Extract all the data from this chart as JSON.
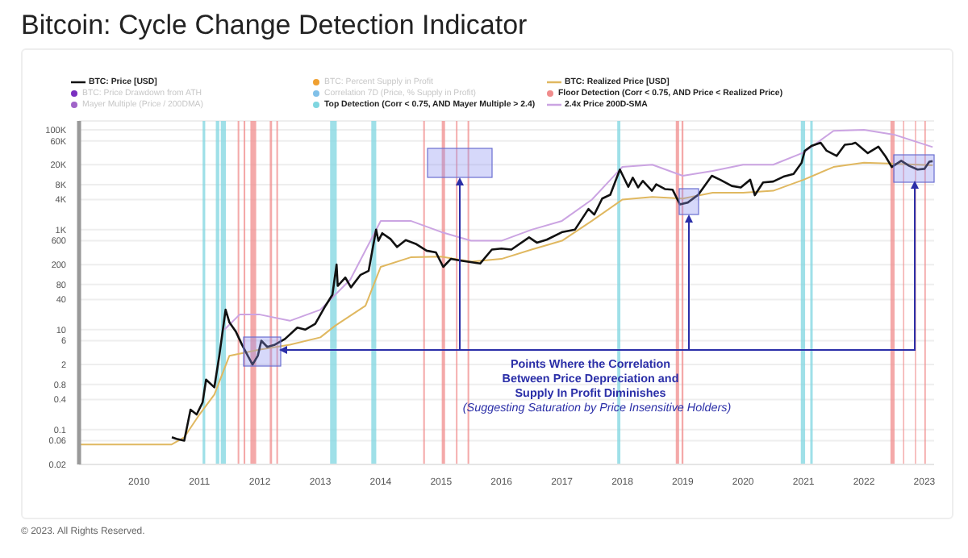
{
  "chart_data": {
    "type": "line",
    "title": "Bitcoin: Cycle Change Detection Indicator",
    "series": [
      {
        "name": "BTC: Price [USD]",
        "color": "#111111",
        "x": [
          "2010-07-18",
          "2010-08-15",
          "2010-10-01",
          "2010-11-08",
          "2010-12-15",
          "2011-01-20",
          "2011-02-10",
          "2011-04-01",
          "2011-05-01",
          "2011-06-08",
          "2011-07-01",
          "2011-08-10",
          "2011-09-15",
          "2011-10-20",
          "2011-11-18",
          "2011-12-20",
          "2012-01-10",
          "2012-02-15",
          "2012-04-01",
          "2012-06-01",
          "2012-08-15",
          "2012-10-01",
          "2012-12-01",
          "2013-02-01",
          "2013-03-15",
          "2013-04-09",
          "2013-04-16",
          "2013-06-01",
          "2013-07-05",
          "2013-09-01",
          "2013-10-20",
          "2013-12-04",
          "2013-12-18",
          "2014-01-10",
          "2014-03-01",
          "2014-04-10",
          "2014-06-01",
          "2014-08-01",
          "2014-10-05",
          "2014-12-01",
          "2015-01-14",
          "2015-03-01",
          "2015-05-01",
          "2015-08-25",
          "2015-11-04",
          "2016-01-01",
          "2016-03-01",
          "2016-06-16",
          "2016-08-02",
          "2016-10-01",
          "2017-01-04",
          "2017-03-20",
          "2017-06-10",
          "2017-07-15",
          "2017-09-01",
          "2017-10-20",
          "2017-12-17",
          "2018-02-06",
          "2018-03-05",
          "2018-04-06",
          "2018-05-05",
          "2018-06-29",
          "2018-07-25",
          "2018-09-15",
          "2018-11-01",
          "2018-12-15",
          "2019-02-01",
          "2019-04-05",
          "2019-06-26",
          "2019-08-15",
          "2019-10-25",
          "2019-12-18",
          "2020-02-13",
          "2020-03-12",
          "2020-05-01",
          "2020-07-01",
          "2020-09-01",
          "2020-11-01",
          "2020-12-20",
          "2021-01-08",
          "2021-02-20",
          "2021-04-14",
          "2021-05-20",
          "2021-07-20",
          "2021-09-07",
          "2021-10-20",
          "2021-11-10",
          "2022-01-24",
          "2022-03-29",
          "2022-05-12",
          "2022-06-18",
          "2022-08-14",
          "2022-10-01",
          "2022-11-21",
          "2023-01-01",
          "2023-01-31",
          "2023-02-20"
        ],
        "values": [
          0.07,
          0.065,
          0.06,
          0.25,
          0.2,
          0.35,
          1,
          0.7,
          3,
          25,
          14,
          9,
          5,
          3,
          2,
          3,
          6,
          4.5,
          5,
          6.5,
          11,
          10,
          13,
          30,
          50,
          200,
          75,
          110,
          70,
          125,
          150,
          1000,
          600,
          850,
          650,
          450,
          620,
          520,
          380,
          350,
          180,
          260,
          240,
          210,
          400,
          420,
          400,
          700,
          550,
          630,
          900,
          1000,
          2600,
          2000,
          4200,
          5000,
          16000,
          7200,
          11000,
          7000,
          9500,
          6000,
          8100,
          6500,
          6300,
          3200,
          3500,
          5000,
          12000,
          10000,
          7500,
          7000,
          10000,
          4900,
          8800,
          9200,
          11500,
          13000,
          22000,
          38000,
          48000,
          55000,
          38000,
          30000,
          50000,
          52000,
          55000,
          34000,
          46000,
          29000,
          18000,
          24000,
          19000,
          16000,
          16500,
          23000,
          23500
        ]
      },
      {
        "name": "BTC: Price Drawdown from ATH",
        "color": "#7a2fc0"
      },
      {
        "name": "Mayer Multiple (Price / 200DMA)",
        "color": "#a064c8"
      },
      {
        "name": "BTC: Percent Supply in Profit",
        "color": "#f0a030"
      },
      {
        "name": "Correlation 7D (Price, % Supply in Profit)",
        "color": "#80c0e8"
      },
      {
        "name": "BTC: Realized Price [USD]",
        "color": "#e0b860",
        "x": [
          "2009-01-03",
          "2010-07-15",
          "2010-10-01",
          "2011-01-01",
          "2011-04-01",
          "2011-07-01",
          "2012-01-01",
          "2012-07-01",
          "2013-01-01",
          "2013-04-01",
          "2013-10-01",
          "2014-01-01",
          "2014-07-01",
          "2015-01-01",
          "2015-07-01",
          "2016-01-01",
          "2016-07-01",
          "2017-01-01",
          "2017-07-01",
          "2018-01-01",
          "2018-07-01",
          "2019-01-01",
          "2019-07-01",
          "2020-01-01",
          "2020-07-01",
          "2021-01-01",
          "2021-07-01",
          "2022-01-01",
          "2022-07-01",
          "2023-02-20"
        ],
        "values": [
          0.05,
          0.05,
          0.07,
          0.2,
          0.5,
          3,
          4,
          5,
          7,
          12,
          30,
          180,
          280,
          290,
          230,
          260,
          400,
          600,
          1500,
          4000,
          4500,
          4200,
          5500,
          5500,
          6000,
          10000,
          18000,
          22000,
          21000,
          19500
        ]
      },
      {
        "name": "2.4x Price 200D-SMA",
        "color": "#cba4e2",
        "x": [
          "2011-06-01",
          "2011-09-01",
          "2012-01-01",
          "2012-07-01",
          "2013-01-01",
          "2013-07-01",
          "2014-01-01",
          "2014-07-01",
          "2015-01-01",
          "2015-07-01",
          "2016-01-01",
          "2016-07-01",
          "2017-01-01",
          "2017-07-01",
          "2018-01-01",
          "2018-07-01",
          "2019-01-01",
          "2019-07-01",
          "2020-01-01",
          "2020-07-01",
          "2021-01-01",
          "2021-07-01",
          "2022-01-01",
          "2022-07-01",
          "2023-02-20"
        ],
        "values": [
          10,
          20,
          20,
          15,
          25,
          100,
          1500,
          1500,
          900,
          600,
          600,
          1000,
          1500,
          4000,
          18000,
          20000,
          12000,
          15000,
          20000,
          20000,
          35000,
          95000,
          100000,
          80000,
          45000
        ]
      }
    ],
    "bands": [
      {
        "axis": "x",
        "from": "2011-04-10",
        "to": "2011-05-01",
        "color": "#7fd6e0",
        "label": "Top Detection (Corr < 0.75, AND Mayer Multiple > 2.4)"
      },
      {
        "axis": "x",
        "from": "2011-01-20",
        "to": "2011-02-05",
        "color": "#7fd6e0"
      },
      {
        "axis": "x",
        "from": "2011-05-10",
        "to": "2011-06-10",
        "color": "#7fd6e0"
      },
      {
        "axis": "x",
        "from": "2013-03-01",
        "to": "2013-04-10",
        "color": "#7fd6e0"
      },
      {
        "axis": "x",
        "from": "2013-11-05",
        "to": "2013-12-05",
        "color": "#7fd6e0"
      },
      {
        "axis": "x",
        "from": "2017-12-01",
        "to": "2017-12-20",
        "color": "#7fd6e0"
      },
      {
        "axis": "x",
        "from": "2020-12-15",
        "to": "2021-01-10",
        "color": "#7fd6e0"
      },
      {
        "axis": "x",
        "from": "2021-02-10",
        "to": "2021-02-25",
        "color": "#7fd6e0"
      },
      {
        "axis": "x",
        "from": "2011-11-05",
        "to": "2011-12-10",
        "color": "#f08c8c",
        "label": "Floor Detection (Corr < 0.75, AND Price < Realized Price)"
      },
      {
        "axis": "x",
        "from": "2011-08-20",
        "to": "2011-08-30",
        "color": "#f08c8c"
      },
      {
        "axis": "x",
        "from": "2011-09-25",
        "to": "2011-10-05",
        "color": "#f08c8c"
      },
      {
        "axis": "x",
        "from": "2012-03-01",
        "to": "2012-03-15",
        "color": "#f08c8c"
      },
      {
        "axis": "x",
        "from": "2012-04-10",
        "to": "2012-04-20",
        "color": "#f08c8c"
      },
      {
        "axis": "x",
        "from": "2014-09-15",
        "to": "2014-09-25",
        "color": "#f08c8c"
      },
      {
        "axis": "x",
        "from": "2015-01-05",
        "to": "2015-01-25",
        "color": "#f08c8c"
      },
      {
        "axis": "x",
        "from": "2015-04-01",
        "to": "2015-04-10",
        "color": "#f08c8c"
      },
      {
        "axis": "x",
        "from": "2015-06-10",
        "to": "2015-06-20",
        "color": "#f08c8c"
      },
      {
        "axis": "x",
        "from": "2018-11-20",
        "to": "2018-12-10",
        "color": "#f08c8c"
      },
      {
        "axis": "x",
        "from": "2018-12-25",
        "to": "2019-01-05",
        "color": "#f08c8c"
      },
      {
        "axis": "x",
        "from": "2022-06-10",
        "to": "2022-07-05",
        "color": "#f08c8c"
      },
      {
        "axis": "x",
        "from": "2022-08-25",
        "to": "2022-09-01",
        "color": "#f08c8c"
      },
      {
        "axis": "x",
        "from": "2022-11-05",
        "to": "2022-11-12",
        "color": "#f08c8c"
      },
      {
        "axis": "x",
        "from": "2023-01-01",
        "to": "2023-01-10",
        "color": "#f08c8c"
      }
    ],
    "xlim": [
      "2009-01-03",
      "2023-03-01"
    ],
    "xticks": [
      "2010",
      "2011",
      "2012",
      "2013",
      "2014",
      "2015",
      "2016",
      "2017",
      "2018",
      "2019",
      "2020",
      "2021",
      "2022",
      "2023"
    ],
    "ylim": [
      0.02,
      150000
    ],
    "yticks": [
      0.02,
      0.06,
      0.1,
      0.4,
      0.8,
      2,
      6,
      10,
      40,
      80,
      200,
      600,
      {
        "value": 1000,
        "label": "1K"
      },
      {
        "value": 4000,
        "label": "4K"
      },
      {
        "value": 8000,
        "label": "8K"
      },
      {
        "value": 20000,
        "label": "20K"
      },
      {
        "value": 60000,
        "label": "60K"
      },
      {
        "value": 100000,
        "label": "100K"
      }
    ],
    "log": "y",
    "grid": "y",
    "legend": "top",
    "marker": "none",
    "annotations": [
      "Points Where the Correlation Between Price Depreciation and Supply In Profit Diminishes",
      "(Suggesting Saturation by Price Insensitive Holders)",
      "© 2023. All Rights Reserved."
    ]
  }
}
